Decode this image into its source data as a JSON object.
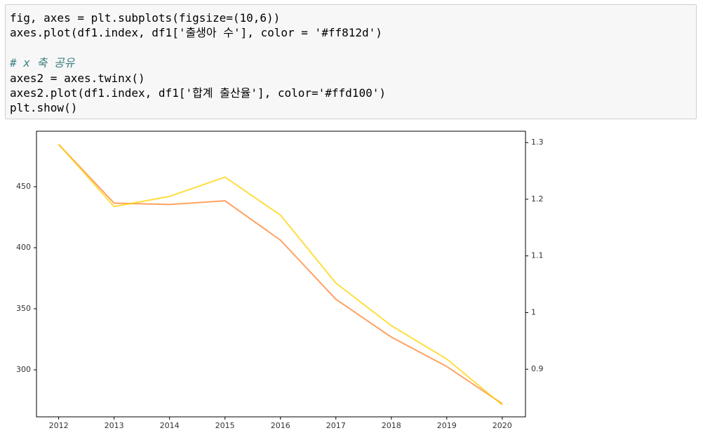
{
  "code": {
    "lines": [
      "fig, axes = plt.subplots(figsize=(10,6))",
      "axes.plot(df1.index, df1['출생아 수'], color = '#ff812d')",
      null,
      "# x 축 공유",
      "axes2 = axes.twinx()",
      "axes2.plot(df1.index, df1['합계 출산율'], color='#ffd100')",
      "plt.show()"
    ]
  },
  "chart_data": {
    "type": "line",
    "x": [
      2012,
      2013,
      2014,
      2015,
      2016,
      2017,
      2018,
      2019,
      2020
    ],
    "series": [
      {
        "color": "#ff812d",
        "values": [
          484.6,
          436.5,
          435.4,
          438.4,
          406.2,
          357.8,
          326.8,
          302.7,
          272.3
        ]
      },
      {
        "color": "#ffd100",
        "axis": "y2",
        "values": [
          1.297,
          1.187,
          1.205,
          1.239,
          1.172,
          1.052,
          0.977,
          0.918,
          0.837
        ]
      }
    ],
    "xlim": [
      2011.6,
      2020.42
    ],
    "xticks": [
      2012,
      2013,
      2014,
      2015,
      2016,
      2017,
      2018,
      2019,
      2020
    ],
    "ylim": [
      261.5,
      495.4
    ],
    "yticks": [
      300,
      350,
      400,
      450
    ],
    "y2lim": [
      0.816,
      1.32
    ],
    "y2ticks": [
      0.9,
      1.0,
      1.1,
      1.2,
      1.3
    ]
  }
}
